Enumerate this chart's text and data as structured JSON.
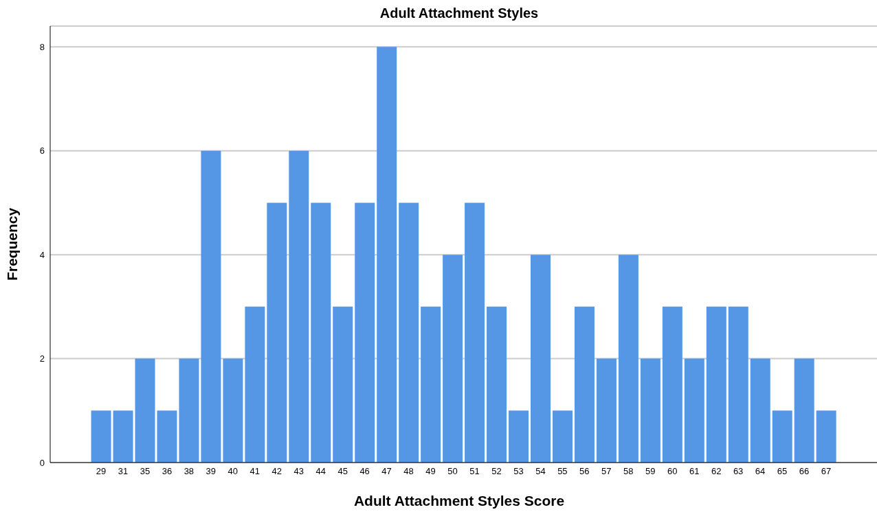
{
  "chart_data": {
    "type": "bar",
    "title": "Adult Attachment Styles",
    "xlabel": "Adult Attachment Styles Score",
    "ylabel": "Frequency",
    "categories": [
      "29",
      "31",
      "35",
      "36",
      "38",
      "39",
      "40",
      "41",
      "42",
      "43",
      "44",
      "45",
      "46",
      "47",
      "48",
      "49",
      "50",
      "51",
      "52",
      "53",
      "54",
      "55",
      "56",
      "57",
      "58",
      "59",
      "60",
      "61",
      "62",
      "63",
      "64",
      "65",
      "66",
      "67"
    ],
    "values": [
      1,
      1,
      2,
      1,
      2,
      6,
      2,
      3,
      5,
      6,
      5,
      3,
      5,
      8,
      5,
      3,
      4,
      5,
      3,
      1,
      4,
      1,
      3,
      2,
      4,
      2,
      3,
      2,
      3,
      3,
      2,
      1,
      2,
      1
    ],
    "color": "#5596e5",
    "ylim": [
      0,
      8.4
    ],
    "yticks": [
      0,
      2,
      4,
      6,
      8
    ],
    "grid": "y"
  }
}
